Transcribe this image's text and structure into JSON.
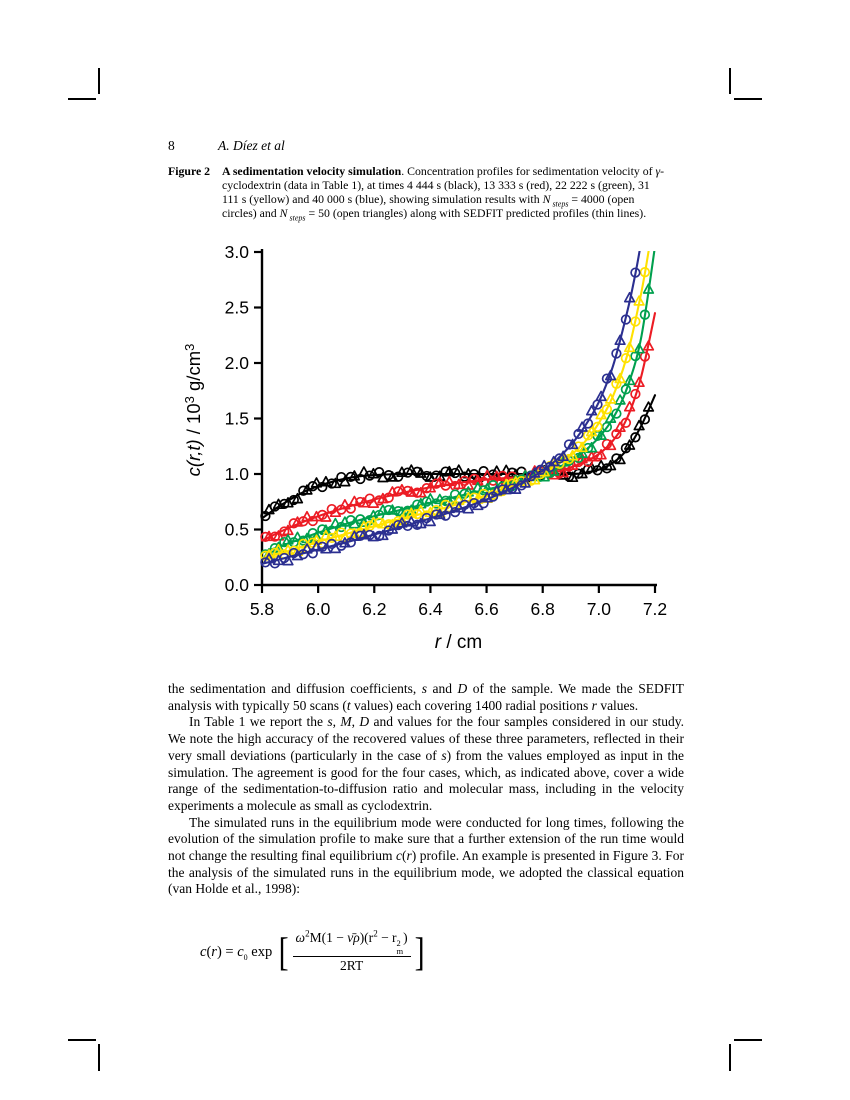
{
  "page": {
    "number": "8",
    "running_head": "A. Díez et al"
  },
  "caption": {
    "label": "Figure 2",
    "runs": [
      {
        "t": "A sedimentation velocity simulation",
        "b": 1
      },
      {
        "t": ". Concentration profiles for sedimentation velocity of "
      },
      {
        "t": "γ",
        "i": 1
      },
      {
        "t": "-cyclodextrin (data in Table 1), at times 4 444 s (black), 13 333 s (red), 22 222 s (green), 31 111 s (yellow) and 40 000 s (blue), showing simulation results with "
      },
      {
        "t": "N",
        "i": 1
      },
      {
        "t": " steps",
        "i": 1,
        "sub": 1
      },
      {
        "t": " = 4000 (open circles) and "
      },
      {
        "t": "N",
        "i": 1
      },
      {
        "t": " steps",
        "i": 1,
        "sub": 1
      },
      {
        "t": " = 50 (open triangles) along with SEDFIT predicted profiles (thin lines)."
      }
    ]
  },
  "chart_data": {
    "type": "line+scatter",
    "xlabel": "r / cm",
    "ylabel": "c(r,t) / 10³ g/cm³",
    "xlabel_runs": [
      {
        "t": "r",
        "i": 1
      },
      {
        "t": " / cm"
      }
    ],
    "ylabel_runs": [
      {
        "t": "c(r,t)",
        "i": 1
      },
      {
        "t": "  / 10"
      },
      {
        "t": "3",
        "sup": 1
      },
      {
        "t": " g/cm"
      },
      {
        "t": "3",
        "sup": 1
      }
    ],
    "xlim": [
      5.8,
      7.2
    ],
    "ylim": [
      0.0,
      3.0
    ],
    "xticks": [
      "5.8",
      "6.0",
      "6.2",
      "6.4",
      "6.6",
      "6.8",
      "7.0",
      "7.2"
    ],
    "yticks": [
      "0.0",
      "0.5",
      "1.0",
      "1.5",
      "2.0",
      "2.5",
      "3.0"
    ],
    "grid": false,
    "legend": "none (described in caption)",
    "markers_note": "open circles: N steps = 4000; open triangles: N steps = 50; thin lines: SEDFIT predicted profiles",
    "series": [
      {
        "label": "4 444 s",
        "color_name": "black",
        "color": "#000000",
        "time_s": 4444,
        "x": [
          5.8,
          5.85,
          5.9,
          5.95,
          6.0,
          6.05,
          6.1,
          6.15,
          6.2,
          6.3,
          6.4,
          6.5,
          6.6,
          6.7,
          6.8,
          6.9,
          6.95,
          7.0,
          7.05,
          7.1,
          7.15,
          7.2
        ],
        "y": [
          0.6,
          0.69,
          0.77,
          0.84,
          0.89,
          0.93,
          0.96,
          0.98,
          0.99,
          1.0,
          1.0,
          1.0,
          1.0,
          1.0,
          1.0,
          1.0,
          1.01,
          1.04,
          1.1,
          1.22,
          1.43,
          1.71
        ]
      },
      {
        "label": "13 333 s",
        "color_name": "red",
        "color": "#EC1C24",
        "time_s": 13333,
        "x": [
          5.8,
          5.9,
          6.0,
          6.1,
          6.2,
          6.3,
          6.4,
          6.5,
          6.6,
          6.7,
          6.8,
          6.85,
          6.9,
          6.95,
          7.0,
          7.05,
          7.1,
          7.15,
          7.2
        ],
        "y": [
          0.4,
          0.52,
          0.62,
          0.7,
          0.77,
          0.83,
          0.88,
          0.92,
          0.95,
          0.97,
          1.0,
          1.02,
          1.06,
          1.11,
          1.18,
          1.3,
          1.5,
          1.87,
          2.45
        ]
      },
      {
        "label": "22 222 s",
        "color_name": "green",
        "color": "#00A04E",
        "time_s": 22222,
        "x": [
          5.8,
          5.9,
          6.0,
          6.1,
          6.2,
          6.3,
          6.4,
          6.5,
          6.6,
          6.7,
          6.8,
          6.85,
          6.9,
          6.95,
          7.0,
          7.05,
          7.1,
          7.15,
          7.2
        ],
        "y": [
          0.29,
          0.38,
          0.47,
          0.55,
          0.62,
          0.68,
          0.74,
          0.8,
          0.86,
          0.92,
          1.0,
          1.05,
          1.12,
          1.21,
          1.33,
          1.5,
          1.77,
          2.22,
          3.05
        ]
      },
      {
        "label": "31 111 s",
        "color_name": "yellow",
        "color": "#FFE100",
        "time_s": 31111,
        "x": [
          5.8,
          5.9,
          6.0,
          6.1,
          6.2,
          6.3,
          6.4,
          6.5,
          6.6,
          6.7,
          6.8,
          6.85,
          6.9,
          6.95,
          7.0,
          7.05,
          7.1,
          7.15,
          7.18
        ],
        "y": [
          0.24,
          0.31,
          0.39,
          0.46,
          0.53,
          0.6,
          0.66,
          0.73,
          0.81,
          0.9,
          1.01,
          1.08,
          1.17,
          1.29,
          1.46,
          1.7,
          2.06,
          2.62,
          3.05
        ]
      },
      {
        "label": "40 000 s",
        "color_name": "blue",
        "color": "#2B2F90",
        "time_s": 40000,
        "x": [
          5.8,
          5.9,
          6.0,
          6.1,
          6.2,
          6.3,
          6.4,
          6.5,
          6.6,
          6.7,
          6.8,
          6.85,
          6.9,
          6.95,
          7.0,
          7.05,
          7.1,
          7.13,
          7.15
        ],
        "y": [
          0.19,
          0.255,
          0.32,
          0.385,
          0.455,
          0.525,
          0.6,
          0.68,
          0.77,
          0.885,
          1.03,
          1.13,
          1.26,
          1.43,
          1.65,
          1.97,
          2.45,
          2.8,
          3.08
        ]
      }
    ]
  },
  "body": {
    "paragraphs": [
      {
        "indent": false,
        "runs": [
          {
            "t": "the sedimentation and diffusion coefficients, "
          },
          {
            "t": "s",
            "i": 1
          },
          {
            "t": " and "
          },
          {
            "t": "D",
            "i": 1
          },
          {
            "t": " of the sample. We made the SEDFIT analysis with typically 50 scans ("
          },
          {
            "t": "t",
            "i": 1
          },
          {
            "t": " values) each covering 1400 radial positions "
          },
          {
            "t": "r",
            "i": 1
          },
          {
            "t": " values."
          }
        ]
      },
      {
        "indent": true,
        "runs": [
          {
            "t": "In Table 1 we report the "
          },
          {
            "t": "s",
            "i": 1
          },
          {
            "t": ", "
          },
          {
            "t": "M",
            "i": 1
          },
          {
            "t": ", "
          },
          {
            "t": "D",
            "i": 1
          },
          {
            "t": " and values for the four samples considered in our study. We note the high accuracy of the recovered values of these three parameters, reflected in their very small deviations (particularly in the case of "
          },
          {
            "t": "s",
            "i": 1
          },
          {
            "t": ") from the values employed as input in the simulation. The agreement is good for the four cases, which, as indicated above, cover a wide range of the sedimentation-to-diffusion ratio and molecular mass, including in the velocity experiments a molecule as small as cyclodextrin."
          }
        ]
      },
      {
        "indent": true,
        "runs": [
          {
            "t": "The simulated runs in the equilibrium mode were conducted for long times, following the evolution of the simulation profile to make sure that a further extension of the run time would not change the resulting final equilibrium "
          },
          {
            "t": "c",
            "i": 1
          },
          {
            "t": "("
          },
          {
            "t": "r",
            "i": 1
          },
          {
            "t": ") profile. An example is presented in Figure 3. For the analysis of the simulated runs in the equilibrium mode, we adopted the classical equation (van Holde et al., 1998):"
          }
        ]
      }
    ]
  },
  "equation": {
    "lhs_runs": [
      {
        "t": "c",
        "i": 1
      },
      {
        "t": "("
      },
      {
        "t": "r",
        "i": 1
      },
      {
        "t": ") = "
      },
      {
        "t": "c",
        "i": 1
      },
      {
        "t": "0",
        "sub": 1
      },
      {
        "t": " exp"
      }
    ],
    "numerator_runs": [
      {
        "t": "ω",
        "i": 1
      },
      {
        "t": "2",
        "sup": 1
      },
      {
        "t": "M(1 − "
      },
      {
        "t": "ν̄ρ",
        "i": 1
      },
      {
        "t": ")(r"
      },
      {
        "t": "2",
        "sup": 1
      },
      {
        "t": " − r"
      },
      {
        "t": "",
        "stack": {
          "sup": "2",
          "sub": "m"
        }
      },
      {
        "t": ")"
      }
    ],
    "denominator": "2RT",
    "brackets": [
      "[",
      "]"
    ]
  }
}
